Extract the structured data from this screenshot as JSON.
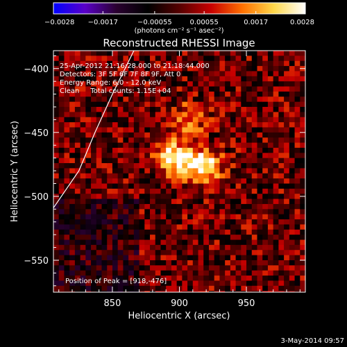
{
  "chart_data": {
    "type": "heatmap",
    "title": "Reconstructed RHESSI Image",
    "xlabel": "Heliocentric X (arcsec)",
    "ylabel": "Heliocentric Y (arcsec)",
    "xlim": [
      806,
      994
    ],
    "ylim": [
      -575,
      -386
    ],
    "x_ticks": [
      850,
      900,
      950
    ],
    "x_tick_labels": [
      "850",
      "900",
      "950"
    ],
    "y_ticks": [
      -400,
      -450,
      -500,
      -550
    ],
    "y_tick_labels": [
      "−400",
      "−450",
      "−500",
      "−550"
    ],
    "colorbar": {
      "range": [
        -0.0028,
        0.0028
      ],
      "tick_values": [
        -0.0028,
        -0.0017,
        -0.00055,
        0.00055,
        0.0017,
        0.0028
      ],
      "tick_labels": [
        "−0.0028",
        "−0.0017",
        "−0.00055",
        "0.00055",
        "0.0017",
        "0.0028"
      ],
      "unit_label": "(photons cm⁻² s⁻¹ asec⁻²)",
      "colors": [
        "#0000ff",
        "#5a00c8",
        "#2a0030",
        "#000000",
        "#550000",
        "#c80000",
        "#ff7000",
        "#ffd84a",
        "#ffffff"
      ]
    },
    "annotations": {
      "time": "25-Apr-2012 21:16:28.000 to 21:18:44.000",
      "detectors": "Detectors: 3F 5F 6F 7F 8F 9F, Att 0",
      "energy": "Energy Range: 6.0 - 12.0 keV",
      "clean": "Clean     Total counts: 1.15E+04",
      "peak": "Position of Peak = [918,-476]"
    },
    "peaks": [
      {
        "x": 918,
        "y": -476,
        "value": 0.0028
      },
      {
        "x": 896,
        "y": -470,
        "value": 0.0026
      },
      {
        "x": 907,
        "y": -440,
        "value": 0.0014
      }
    ],
    "limb_curve": [
      {
        "x": 866,
        "y": -386
      },
      {
        "x": 850,
        "y": -420
      },
      {
        "x": 837,
        "y": -450
      },
      {
        "x": 825,
        "y": -480
      },
      {
        "x": 806,
        "y": -509
      }
    ],
    "grid": false,
    "colormap": "RHESSI red-temperature with blue negatives"
  },
  "footer": {
    "date": "3-May-2014 09:57"
  }
}
